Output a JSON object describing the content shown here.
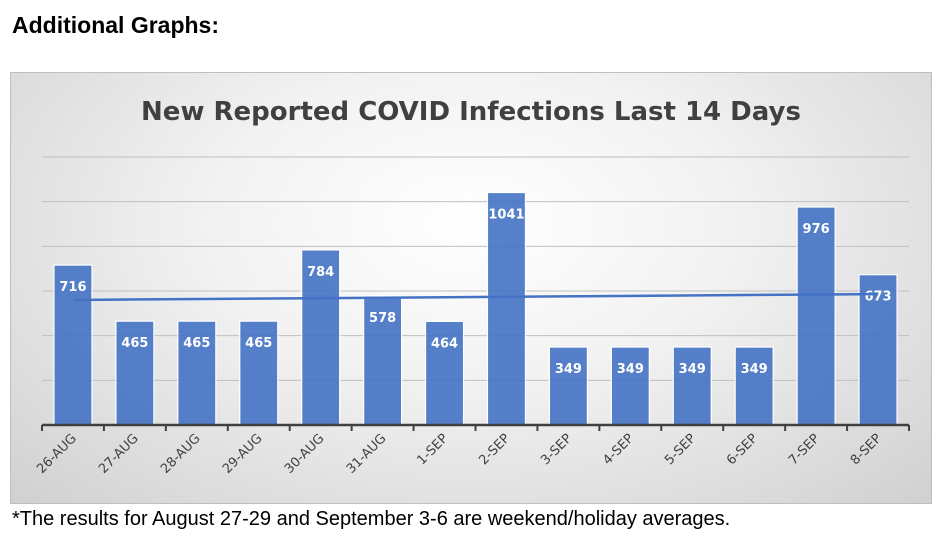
{
  "heading": "Additional Graphs:",
  "footnote": "*The results for August 27-29 and September 3-6 are weekend/holiday averages.",
  "chart_data": {
    "type": "bar",
    "title": "New Reported COVID Infections Last 14 Days",
    "xlabel": "",
    "ylabel": "",
    "categories": [
      "26-AUG",
      "27-AUG",
      "28-AUG",
      "29-AUG",
      "30-AUG",
      "31-AUG",
      "1-SEP",
      "2-SEP",
      "3-SEP",
      "4-SEP",
      "5-SEP",
      "6-SEP",
      "7-SEP",
      "8-SEP"
    ],
    "values": [
      716,
      465,
      465,
      465,
      784,
      578,
      464,
      1041,
      349,
      349,
      349,
      349,
      976,
      673
    ],
    "ylim": [
      0,
      1200
    ],
    "ytick_step": 200,
    "y_tick_labels_shown": false,
    "grid": true,
    "trendline": "linear",
    "bar_color": "#4472C4",
    "trend_color": "#4472C4"
  }
}
